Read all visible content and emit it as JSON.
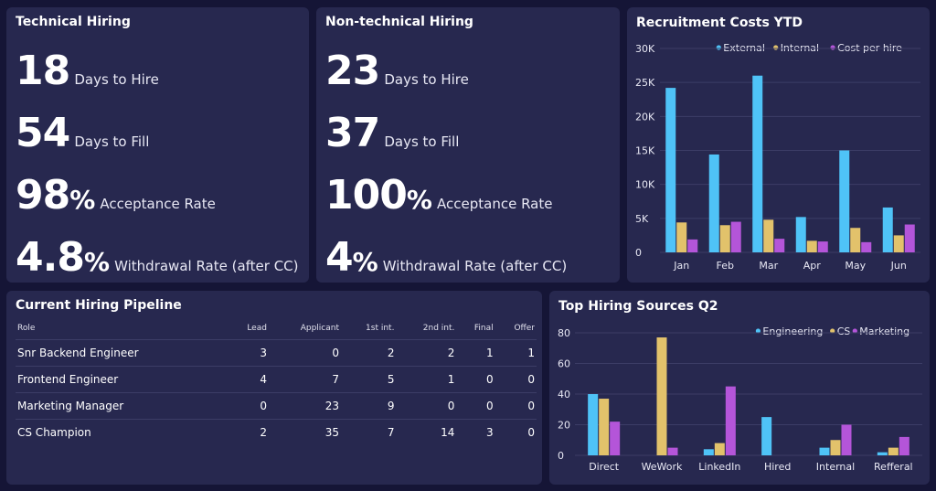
{
  "tech": {
    "title": "Technical Hiring",
    "m1_value": "18",
    "m1_label": "Days to Hire",
    "m2_value": "54",
    "m2_label": "Days to Fill",
    "m3_value": "98",
    "m3_unit": "%",
    "m3_label": "Acceptance Rate",
    "m4_value": "4.8",
    "m4_unit": "%",
    "m4_label": "Withdrawal Rate (after CC)"
  },
  "nontech": {
    "title": "Non-technical Hiring",
    "m1_value": "23",
    "m1_label": "Days to Hire",
    "m2_value": "37",
    "m2_label": "Days to Fill",
    "m3_value": "100",
    "m3_unit": "%",
    "m3_label": "Acceptance Rate",
    "m4_value": "4",
    "m4_unit": "%",
    "m4_label": "Withdrawal Rate (after CC)"
  },
  "pipeline": {
    "title": "Current Hiring Pipeline",
    "headers": [
      "Role",
      "Lead",
      "Applicant",
      "1st int.",
      "2nd int.",
      "Final",
      "Offer"
    ],
    "rows": [
      [
        "Snr Backend Engineer",
        "3",
        "0",
        "2",
        "2",
        "1",
        "1"
      ],
      [
        "Frontend Engineer",
        "4",
        "7",
        "5",
        "1",
        "0",
        "0"
      ],
      [
        "Marketing Manager",
        "0",
        "23",
        "9",
        "0",
        "0",
        "0"
      ],
      [
        "CS Champion",
        "2",
        "35",
        "7",
        "14",
        "3",
        "0"
      ]
    ]
  },
  "colors": {
    "blue": "#4fc3f7",
    "yellow": "#e2c26b",
    "purple": "#b455d9"
  },
  "chart_data": [
    {
      "type": "bar",
      "title": "Recruitment Costs YTD",
      "categories": [
        "Jan",
        "Feb",
        "Mar",
        "Apr",
        "May",
        "Jun"
      ],
      "series": [
        {
          "name": "External",
          "values": [
            24200,
            14400,
            26000,
            5200,
            15000,
            6600
          ]
        },
        {
          "name": "Internal",
          "values": [
            4400,
            4000,
            4800,
            1700,
            3600,
            2500
          ]
        },
        {
          "name": "Cost per hire",
          "values": [
            1900,
            4500,
            2000,
            1600,
            1500,
            4100
          ]
        }
      ],
      "yticks": [
        "0",
        "5K",
        "10K",
        "15K",
        "20K",
        "25K",
        "30K"
      ],
      "ylim": [
        0,
        30000
      ],
      "grid": true,
      "legend": "top-right"
    },
    {
      "type": "bar",
      "title": "Top Hiring Sources Q2",
      "categories": [
        "Direct",
        "WeWork",
        "LinkedIn",
        "Hired",
        "Internal",
        "Refferal"
      ],
      "series": [
        {
          "name": "Engineering",
          "values": [
            40,
            0,
            4,
            25,
            5,
            2
          ]
        },
        {
          "name": "CS",
          "values": [
            37,
            77,
            8,
            0,
            10,
            5
          ]
        },
        {
          "name": "Marketing",
          "values": [
            22,
            5,
            45,
            0,
            20,
            12
          ]
        }
      ],
      "yticks": [
        "0",
        "20",
        "40",
        "60",
        "80"
      ],
      "ylim": [
        0,
        80
      ],
      "grid": true,
      "legend": "top-right"
    }
  ]
}
